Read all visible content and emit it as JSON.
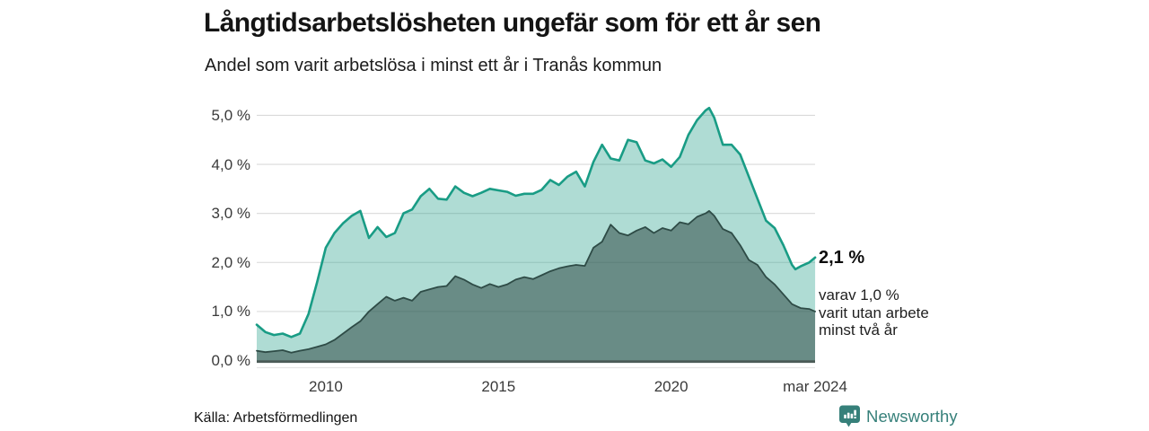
{
  "header": {
    "title": "Långtidsarbetslösheten ungefär som för ett år sen",
    "subtitle": "Andel som varit arbetslösa i minst ett år i Tranås kommun"
  },
  "footer": {
    "source": "Källa: Arbetsförmedlingen",
    "brand": "Newsworthy"
  },
  "colors": {
    "line_total": "#199c85",
    "fill_total": "rgba(25,156,133,0.35)",
    "line_two_years": "#2e4b46",
    "fill_two_years": "rgba(40,68,63,0.52)",
    "gridline": "#d9d9d9",
    "baseline": "#4a5a56",
    "axis_underline": "#e5e5e5",
    "brand_teal": "#36807a"
  },
  "chart_data": {
    "type": "area",
    "title": "Långtidsarbetslösheten ungefär som för ett år sen",
    "subtitle": "Andel som varit arbetslösa i minst ett år i Tranås kommun",
    "unit": "%",
    "grid": "horizontal",
    "legend_position": "annotation-right",
    "x_axis": {
      "ticks": [
        {
          "t": 2010.0,
          "label": "2010"
        },
        {
          "t": 2015.0,
          "label": "2015"
        },
        {
          "t": 2020.0,
          "label": "2020"
        },
        {
          "t": 2024.17,
          "label": "mar 2024"
        }
      ],
      "range": [
        2008.0,
        2024.17
      ]
    },
    "y_axis": {
      "ticks": [
        {
          "v": 0,
          "label": "0,0 %"
        },
        {
          "v": 1,
          "label": "1,0 %"
        },
        {
          "v": 2,
          "label": "2,0 %"
        },
        {
          "v": 3,
          "label": "3,0 %"
        },
        {
          "v": 4,
          "label": "4,0 %"
        },
        {
          "v": 5,
          "label": "5,0 %"
        }
      ],
      "range": [
        0,
        5.3
      ]
    },
    "series": [
      {
        "name": "arbetslösa minst ett år",
        "end_value": 2.1,
        "points": [
          [
            2008.0,
            0.73
          ],
          [
            2008.25,
            0.58
          ],
          [
            2008.5,
            0.52
          ],
          [
            2008.75,
            0.55
          ],
          [
            2009.0,
            0.48
          ],
          [
            2009.25,
            0.55
          ],
          [
            2009.5,
            0.95
          ],
          [
            2009.75,
            1.6
          ],
          [
            2010.0,
            2.3
          ],
          [
            2010.25,
            2.6
          ],
          [
            2010.5,
            2.8
          ],
          [
            2010.75,
            2.95
          ],
          [
            2011.0,
            3.05
          ],
          [
            2011.25,
            2.5
          ],
          [
            2011.5,
            2.72
          ],
          [
            2011.75,
            2.52
          ],
          [
            2012.0,
            2.6
          ],
          [
            2012.25,
            3.0
          ],
          [
            2012.5,
            3.08
          ],
          [
            2012.75,
            3.35
          ],
          [
            2013.0,
            3.5
          ],
          [
            2013.25,
            3.3
          ],
          [
            2013.5,
            3.28
          ],
          [
            2013.75,
            3.55
          ],
          [
            2014.0,
            3.42
          ],
          [
            2014.25,
            3.35
          ],
          [
            2014.5,
            3.42
          ],
          [
            2014.75,
            3.5
          ],
          [
            2015.0,
            3.47
          ],
          [
            2015.25,
            3.44
          ],
          [
            2015.5,
            3.36
          ],
          [
            2015.75,
            3.4
          ],
          [
            2016.0,
            3.4
          ],
          [
            2016.25,
            3.48
          ],
          [
            2016.5,
            3.68
          ],
          [
            2016.75,
            3.58
          ],
          [
            2017.0,
            3.75
          ],
          [
            2017.25,
            3.85
          ],
          [
            2017.5,
            3.55
          ],
          [
            2017.75,
            4.05
          ],
          [
            2018.0,
            4.4
          ],
          [
            2018.25,
            4.12
          ],
          [
            2018.5,
            4.08
          ],
          [
            2018.75,
            4.5
          ],
          [
            2019.0,
            4.45
          ],
          [
            2019.25,
            4.08
          ],
          [
            2019.5,
            4.02
          ],
          [
            2019.75,
            4.1
          ],
          [
            2020.0,
            3.95
          ],
          [
            2020.25,
            4.15
          ],
          [
            2020.5,
            4.6
          ],
          [
            2020.75,
            4.9
          ],
          [
            2021.0,
            5.1
          ],
          [
            2021.1,
            5.15
          ],
          [
            2021.25,
            4.95
          ],
          [
            2021.5,
            4.4
          ],
          [
            2021.75,
            4.4
          ],
          [
            2022.0,
            4.2
          ],
          [
            2022.25,
            3.75
          ],
          [
            2022.5,
            3.3
          ],
          [
            2022.75,
            2.85
          ],
          [
            2023.0,
            2.7
          ],
          [
            2023.25,
            2.35
          ],
          [
            2023.5,
            1.95
          ],
          [
            2023.6,
            1.86
          ],
          [
            2023.75,
            1.92
          ],
          [
            2024.0,
            2.0
          ],
          [
            2024.17,
            2.1
          ]
        ]
      },
      {
        "name": "utan arbete minst två år",
        "end_value": 1.0,
        "points": [
          [
            2008.0,
            0.2
          ],
          [
            2008.25,
            0.17
          ],
          [
            2008.5,
            0.19
          ],
          [
            2008.75,
            0.21
          ],
          [
            2009.0,
            0.16
          ],
          [
            2009.25,
            0.2
          ],
          [
            2009.5,
            0.23
          ],
          [
            2009.75,
            0.28
          ],
          [
            2010.0,
            0.33
          ],
          [
            2010.25,
            0.42
          ],
          [
            2010.5,
            0.55
          ],
          [
            2010.75,
            0.68
          ],
          [
            2011.0,
            0.8
          ],
          [
            2011.25,
            1.0
          ],
          [
            2011.5,
            1.15
          ],
          [
            2011.75,
            1.3
          ],
          [
            2012.0,
            1.22
          ],
          [
            2012.25,
            1.28
          ],
          [
            2012.5,
            1.22
          ],
          [
            2012.75,
            1.4
          ],
          [
            2013.0,
            1.45
          ],
          [
            2013.25,
            1.5
          ],
          [
            2013.5,
            1.52
          ],
          [
            2013.75,
            1.72
          ],
          [
            2014.0,
            1.65
          ],
          [
            2014.25,
            1.55
          ],
          [
            2014.5,
            1.48
          ],
          [
            2014.75,
            1.56
          ],
          [
            2015.0,
            1.5
          ],
          [
            2015.25,
            1.55
          ],
          [
            2015.5,
            1.65
          ],
          [
            2015.75,
            1.7
          ],
          [
            2016.0,
            1.66
          ],
          [
            2016.25,
            1.74
          ],
          [
            2016.5,
            1.82
          ],
          [
            2016.75,
            1.88
          ],
          [
            2017.0,
            1.92
          ],
          [
            2017.25,
            1.95
          ],
          [
            2017.5,
            1.93
          ],
          [
            2017.75,
            2.3
          ],
          [
            2018.0,
            2.42
          ],
          [
            2018.25,
            2.77
          ],
          [
            2018.5,
            2.6
          ],
          [
            2018.75,
            2.55
          ],
          [
            2019.0,
            2.65
          ],
          [
            2019.25,
            2.72
          ],
          [
            2019.5,
            2.6
          ],
          [
            2019.75,
            2.7
          ],
          [
            2020.0,
            2.65
          ],
          [
            2020.25,
            2.82
          ],
          [
            2020.5,
            2.78
          ],
          [
            2020.75,
            2.93
          ],
          [
            2021.0,
            3.0
          ],
          [
            2021.1,
            3.05
          ],
          [
            2021.25,
            2.95
          ],
          [
            2021.5,
            2.68
          ],
          [
            2021.75,
            2.6
          ],
          [
            2022.0,
            2.35
          ],
          [
            2022.25,
            2.05
          ],
          [
            2022.5,
            1.95
          ],
          [
            2022.75,
            1.7
          ],
          [
            2023.0,
            1.55
          ],
          [
            2023.25,
            1.35
          ],
          [
            2023.5,
            1.15
          ],
          [
            2023.75,
            1.07
          ],
          [
            2024.0,
            1.05
          ],
          [
            2024.17,
            1.0
          ]
        ]
      }
    ],
    "annotations": {
      "end_value_label": "2,1 %",
      "sub_lines": [
        "varav 1,0 %",
        "varit utan arbete",
        "minst två år"
      ]
    }
  }
}
